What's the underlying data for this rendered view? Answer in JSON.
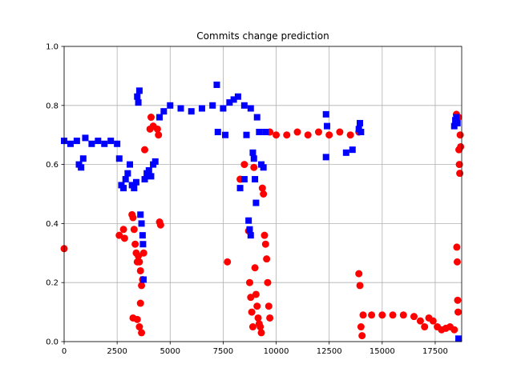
{
  "chart_data": {
    "type": "scatter",
    "title": "Commits change prediction",
    "xlabel": "",
    "ylabel": "",
    "xlim": [
      0,
      18750
    ],
    "ylim": [
      0,
      1
    ],
    "grid": true,
    "xticks": [
      0,
      2500,
      5000,
      7500,
      10000,
      12500,
      15000,
      17500
    ],
    "xtick_labels": [
      "0",
      "2500",
      "5000",
      "7500",
      "10000",
      "12500",
      "15000",
      "17500"
    ],
    "yticks": [
      0.0,
      0.2,
      0.4,
      0.6,
      0.8,
      1.0
    ],
    "ytick_labels": [
      "0.0",
      "0.2",
      "0.4",
      "0.6",
      "0.8",
      "1.0"
    ],
    "series": [
      {
        "color": "#ff0000",
        "marker": "circle",
        "points": [
          [
            0,
            0.315
          ],
          [
            2600,
            0.36
          ],
          [
            2800,
            0.38
          ],
          [
            2850,
            0.35
          ],
          [
            3200,
            0.43
          ],
          [
            3250,
            0.42
          ],
          [
            3300,
            0.38
          ],
          [
            3350,
            0.33
          ],
          [
            3400,
            0.3
          ],
          [
            3450,
            0.27
          ],
          [
            3500,
            0.29
          ],
          [
            3550,
            0.27
          ],
          [
            3600,
            0.24
          ],
          [
            3650,
            0.19
          ],
          [
            3700,
            0.21
          ],
          [
            3250,
            0.08
          ],
          [
            3450,
            0.075
          ],
          [
            3550,
            0.05
          ],
          [
            3650,
            0.03
          ],
          [
            3600,
            0.13
          ],
          [
            3750,
            0.3
          ],
          [
            3800,
            0.65
          ],
          [
            4050,
            0.72
          ],
          [
            4100,
            0.76
          ],
          [
            4200,
            0.73
          ],
          [
            4400,
            0.72
          ],
          [
            4450,
            0.7
          ],
          [
            4500,
            0.405
          ],
          [
            4550,
            0.395
          ],
          [
            7700,
            0.27
          ],
          [
            8300,
            0.55
          ],
          [
            8500,
            0.6
          ],
          [
            8700,
            0.375
          ],
          [
            8750,
            0.2
          ],
          [
            8800,
            0.15
          ],
          [
            8850,
            0.1
          ],
          [
            8900,
            0.05
          ],
          [
            8950,
            0.59
          ],
          [
            9000,
            0.25
          ],
          [
            9050,
            0.16
          ],
          [
            9100,
            0.12
          ],
          [
            9150,
            0.08
          ],
          [
            9200,
            0.06
          ],
          [
            9250,
            0.05
          ],
          [
            9300,
            0.03
          ],
          [
            9350,
            0.52
          ],
          [
            9400,
            0.5
          ],
          [
            9450,
            0.36
          ],
          [
            9500,
            0.33
          ],
          [
            9550,
            0.28
          ],
          [
            9600,
            0.2
          ],
          [
            9650,
            0.12
          ],
          [
            9700,
            0.08
          ],
          [
            9700,
            0.71
          ],
          [
            10000,
            0.7
          ],
          [
            10500,
            0.7
          ],
          [
            11000,
            0.71
          ],
          [
            11500,
            0.7
          ],
          [
            12000,
            0.71
          ],
          [
            12500,
            0.7
          ],
          [
            13000,
            0.71
          ],
          [
            13500,
            0.7
          ],
          [
            13900,
            0.71
          ],
          [
            13900,
            0.23
          ],
          [
            13950,
            0.19
          ],
          [
            14000,
            0.05
          ],
          [
            14050,
            0.02
          ],
          [
            14100,
            0.09
          ],
          [
            14500,
            0.09
          ],
          [
            15000,
            0.09
          ],
          [
            15500,
            0.09
          ],
          [
            16000,
            0.09
          ],
          [
            16500,
            0.085
          ],
          [
            16800,
            0.07
          ],
          [
            17000,
            0.05
          ],
          [
            17200,
            0.08
          ],
          [
            17400,
            0.07
          ],
          [
            17600,
            0.05
          ],
          [
            17800,
            0.04
          ],
          [
            18000,
            0.045
          ],
          [
            18200,
            0.05
          ],
          [
            18400,
            0.04
          ],
          [
            18500,
            0.77
          ],
          [
            18520,
            0.32
          ],
          [
            18540,
            0.27
          ],
          [
            18560,
            0.14
          ],
          [
            18580,
            0.1
          ],
          [
            18600,
            0.76
          ],
          [
            18620,
            0.65
          ],
          [
            18640,
            0.6
          ],
          [
            18660,
            0.57
          ],
          [
            18680,
            0.7
          ],
          [
            18700,
            0.66
          ]
        ]
      },
      {
        "color": "#0000ff",
        "marker": "square",
        "points": [
          [
            0,
            0.68
          ],
          [
            300,
            0.67
          ],
          [
            600,
            0.68
          ],
          [
            700,
            0.6
          ],
          [
            800,
            0.59
          ],
          [
            900,
            0.62
          ],
          [
            1000,
            0.69
          ],
          [
            1300,
            0.67
          ],
          [
            1600,
            0.68
          ],
          [
            1900,
            0.67
          ],
          [
            2200,
            0.68
          ],
          [
            2500,
            0.67
          ],
          [
            2600,
            0.62
          ],
          [
            2700,
            0.53
          ],
          [
            2800,
            0.52
          ],
          [
            2900,
            0.55
          ],
          [
            3000,
            0.57
          ],
          [
            3100,
            0.6
          ],
          [
            3200,
            0.53
          ],
          [
            3300,
            0.52
          ],
          [
            3400,
            0.54
          ],
          [
            3450,
            0.83
          ],
          [
            3500,
            0.81
          ],
          [
            3550,
            0.85
          ],
          [
            3600,
            0.43
          ],
          [
            3650,
            0.4
          ],
          [
            3700,
            0.36
          ],
          [
            3720,
            0.33
          ],
          [
            3740,
            0.21
          ],
          [
            3800,
            0.55
          ],
          [
            3900,
            0.57
          ],
          [
            4000,
            0.58
          ],
          [
            4100,
            0.56
          ],
          [
            4200,
            0.6
          ],
          [
            4300,
            0.61
          ],
          [
            4500,
            0.76
          ],
          [
            4700,
            0.78
          ],
          [
            5000,
            0.8
          ],
          [
            5500,
            0.79
          ],
          [
            6000,
            0.78
          ],
          [
            6500,
            0.79
          ],
          [
            7000,
            0.8
          ],
          [
            7200,
            0.87
          ],
          [
            7250,
            0.71
          ],
          [
            7500,
            0.79
          ],
          [
            7600,
            0.7
          ],
          [
            7800,
            0.81
          ],
          [
            8000,
            0.82
          ],
          [
            8200,
            0.83
          ],
          [
            8500,
            0.8
          ],
          [
            8600,
            0.7
          ],
          [
            8800,
            0.79
          ],
          [
            8900,
            0.64
          ],
          [
            8950,
            0.62
          ],
          [
            9000,
            0.55
          ],
          [
            9050,
            0.47
          ],
          [
            9100,
            0.76
          ],
          [
            9200,
            0.71
          ],
          [
            8300,
            0.52
          ],
          [
            8500,
            0.55
          ],
          [
            8700,
            0.41
          ],
          [
            8750,
            0.38
          ],
          [
            8800,
            0.36
          ],
          [
            9300,
            0.6
          ],
          [
            9400,
            0.59
          ],
          [
            9500,
            0.71
          ],
          [
            12350,
            0.77
          ],
          [
            12400,
            0.73
          ],
          [
            12350,
            0.625
          ],
          [
            13300,
            0.64
          ],
          [
            13600,
            0.65
          ],
          [
            13900,
            0.72
          ],
          [
            13950,
            0.74
          ],
          [
            14000,
            0.71
          ],
          [
            18400,
            0.73
          ],
          [
            18450,
            0.75
          ],
          [
            18500,
            0.76
          ],
          [
            18550,
            0.74
          ],
          [
            18600,
            0.01
          ]
        ]
      }
    ]
  }
}
